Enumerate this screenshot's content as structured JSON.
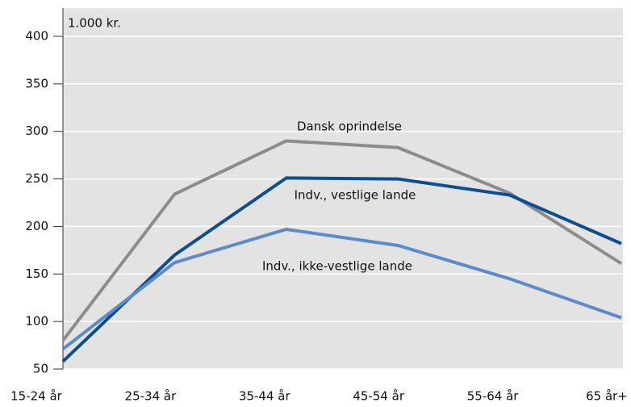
{
  "chart_data": {
    "type": "line",
    "y_label": "1.000 kr.",
    "categories": [
      "15-24 år",
      "25-34 år",
      "35-44 år",
      "45-54 år",
      "55-64 år",
      "65 år+"
    ],
    "series": [
      {
        "name": "Dansk oprindelse",
        "color": "#8c8c8c",
        "values": [
          80,
          234,
          290,
          283,
          235,
          161
        ]
      },
      {
        "name": "Indv., vestlige lande",
        "color": "#0b4f8f",
        "values": [
          58,
          170,
          251,
          250,
          233,
          182
        ]
      },
      {
        "name": "Indv., ikke-vestlige lande",
        "color": "#5b8bc8",
        "values": [
          71,
          162,
          197,
          180,
          145,
          104
        ]
      }
    ],
    "ylim": [
      50,
      400
    ],
    "yticks": [
      50,
      100,
      150,
      200,
      250,
      300,
      350,
      400
    ],
    "grid": true
  }
}
